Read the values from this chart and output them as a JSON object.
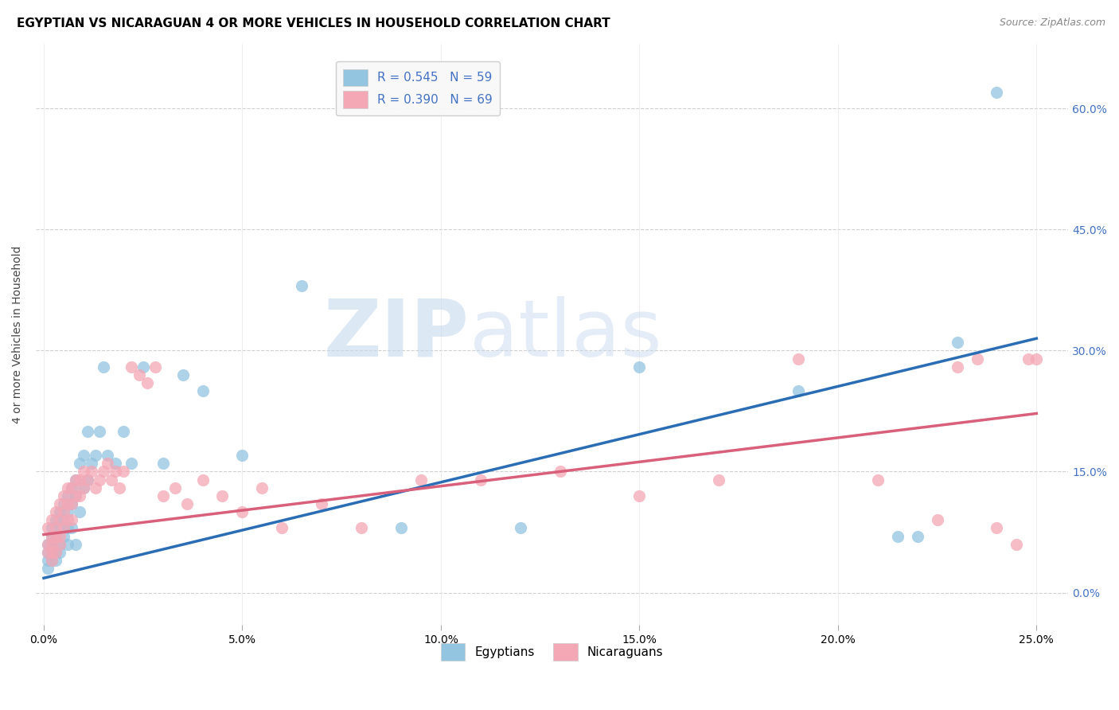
{
  "title": "EGYPTIAN VS NICARAGUAN 4 OR MORE VEHICLES IN HOUSEHOLD CORRELATION CHART",
  "source": "Source: ZipAtlas.com",
  "ylabel_label": "4 or more Vehicles in Household",
  "xlim": [
    -0.002,
    0.258
  ],
  "ylim": [
    -0.04,
    0.68
  ],
  "x_tick_vals": [
    0.0,
    0.05,
    0.1,
    0.15,
    0.2,
    0.25
  ],
  "x_tick_labels": [
    "0.0%",
    "5.0%",
    "10.0%",
    "15.0%",
    "20.0%",
    "25.0%"
  ],
  "y_tick_vals": [
    0.0,
    0.15,
    0.3,
    0.45,
    0.6
  ],
  "y_tick_labels": [
    "0.0%",
    "15.0%",
    "30.0%",
    "45.0%",
    "60.0%"
  ],
  "blue_line_x": [
    0.0,
    0.25
  ],
  "blue_line_y": [
    0.018,
    0.315
  ],
  "pink_line_x": [
    0.0,
    0.25
  ],
  "pink_line_y": [
    0.072,
    0.222
  ],
  "scatter_blue": "#93c4e0",
  "scatter_pink": "#f4a7b5",
  "line_blue": "#2a6db5",
  "line_pink": "#d9607a",
  "watermark_zip": "ZIP",
  "watermark_atlas": "atlas",
  "watermark_color_zip": "#c5d9ee",
  "watermark_color_atlas": "#c5d9ee",
  "title_fontsize": 11,
  "axis_tick_fontsize": 10,
  "right_tick_color": "#4472c4",
  "grid_color": "#d0d0d0",
  "legend_box_color": "#f0f0f0",
  "eg_x": [
    0.001,
    0.001,
    0.001,
    0.001,
    0.002,
    0.002,
    0.002,
    0.002,
    0.002,
    0.003,
    0.003,
    0.003,
    0.003,
    0.003,
    0.004,
    0.004,
    0.004,
    0.004,
    0.005,
    0.005,
    0.005,
    0.006,
    0.006,
    0.006,
    0.006,
    0.007,
    0.007,
    0.007,
    0.008,
    0.008,
    0.008,
    0.009,
    0.009,
    0.01,
    0.01,
    0.011,
    0.011,
    0.012,
    0.013,
    0.014,
    0.015,
    0.016,
    0.018,
    0.02,
    0.022,
    0.025,
    0.03,
    0.035,
    0.04,
    0.05,
    0.065,
    0.09,
    0.12,
    0.15,
    0.19,
    0.215,
    0.22,
    0.23,
    0.24
  ],
  "eg_y": [
    0.06,
    0.04,
    0.05,
    0.03,
    0.07,
    0.05,
    0.06,
    0.04,
    0.08,
    0.09,
    0.06,
    0.07,
    0.05,
    0.04,
    0.1,
    0.08,
    0.06,
    0.05,
    0.11,
    0.09,
    0.07,
    0.12,
    0.1,
    0.08,
    0.06,
    0.13,
    0.11,
    0.08,
    0.14,
    0.12,
    0.06,
    0.16,
    0.1,
    0.17,
    0.13,
    0.2,
    0.14,
    0.16,
    0.17,
    0.2,
    0.28,
    0.17,
    0.16,
    0.2,
    0.16,
    0.28,
    0.16,
    0.27,
    0.25,
    0.17,
    0.38,
    0.08,
    0.08,
    0.28,
    0.25,
    0.07,
    0.07,
    0.31,
    0.62
  ],
  "ni_x": [
    0.001,
    0.001,
    0.001,
    0.002,
    0.002,
    0.002,
    0.002,
    0.002,
    0.003,
    0.003,
    0.003,
    0.003,
    0.004,
    0.004,
    0.004,
    0.004,
    0.005,
    0.005,
    0.005,
    0.006,
    0.006,
    0.006,
    0.007,
    0.007,
    0.007,
    0.008,
    0.008,
    0.009,
    0.009,
    0.01,
    0.01,
    0.011,
    0.012,
    0.013,
    0.014,
    0.015,
    0.016,
    0.017,
    0.018,
    0.019,
    0.02,
    0.022,
    0.024,
    0.026,
    0.028,
    0.03,
    0.033,
    0.036,
    0.04,
    0.045,
    0.05,
    0.055,
    0.06,
    0.07,
    0.08,
    0.095,
    0.11,
    0.13,
    0.15,
    0.17,
    0.19,
    0.21,
    0.225,
    0.23,
    0.235,
    0.24,
    0.245,
    0.248,
    0.25
  ],
  "ni_y": [
    0.08,
    0.06,
    0.05,
    0.09,
    0.07,
    0.06,
    0.05,
    0.04,
    0.1,
    0.08,
    0.07,
    0.05,
    0.11,
    0.09,
    0.07,
    0.06,
    0.12,
    0.1,
    0.08,
    0.13,
    0.11,
    0.09,
    0.13,
    0.11,
    0.09,
    0.14,
    0.12,
    0.14,
    0.12,
    0.15,
    0.13,
    0.14,
    0.15,
    0.13,
    0.14,
    0.15,
    0.16,
    0.14,
    0.15,
    0.13,
    0.15,
    0.28,
    0.27,
    0.26,
    0.28,
    0.12,
    0.13,
    0.11,
    0.14,
    0.12,
    0.1,
    0.13,
    0.08,
    0.11,
    0.08,
    0.14,
    0.14,
    0.15,
    0.12,
    0.14,
    0.29,
    0.14,
    0.09,
    0.28,
    0.29,
    0.08,
    0.06,
    0.29,
    0.29
  ]
}
